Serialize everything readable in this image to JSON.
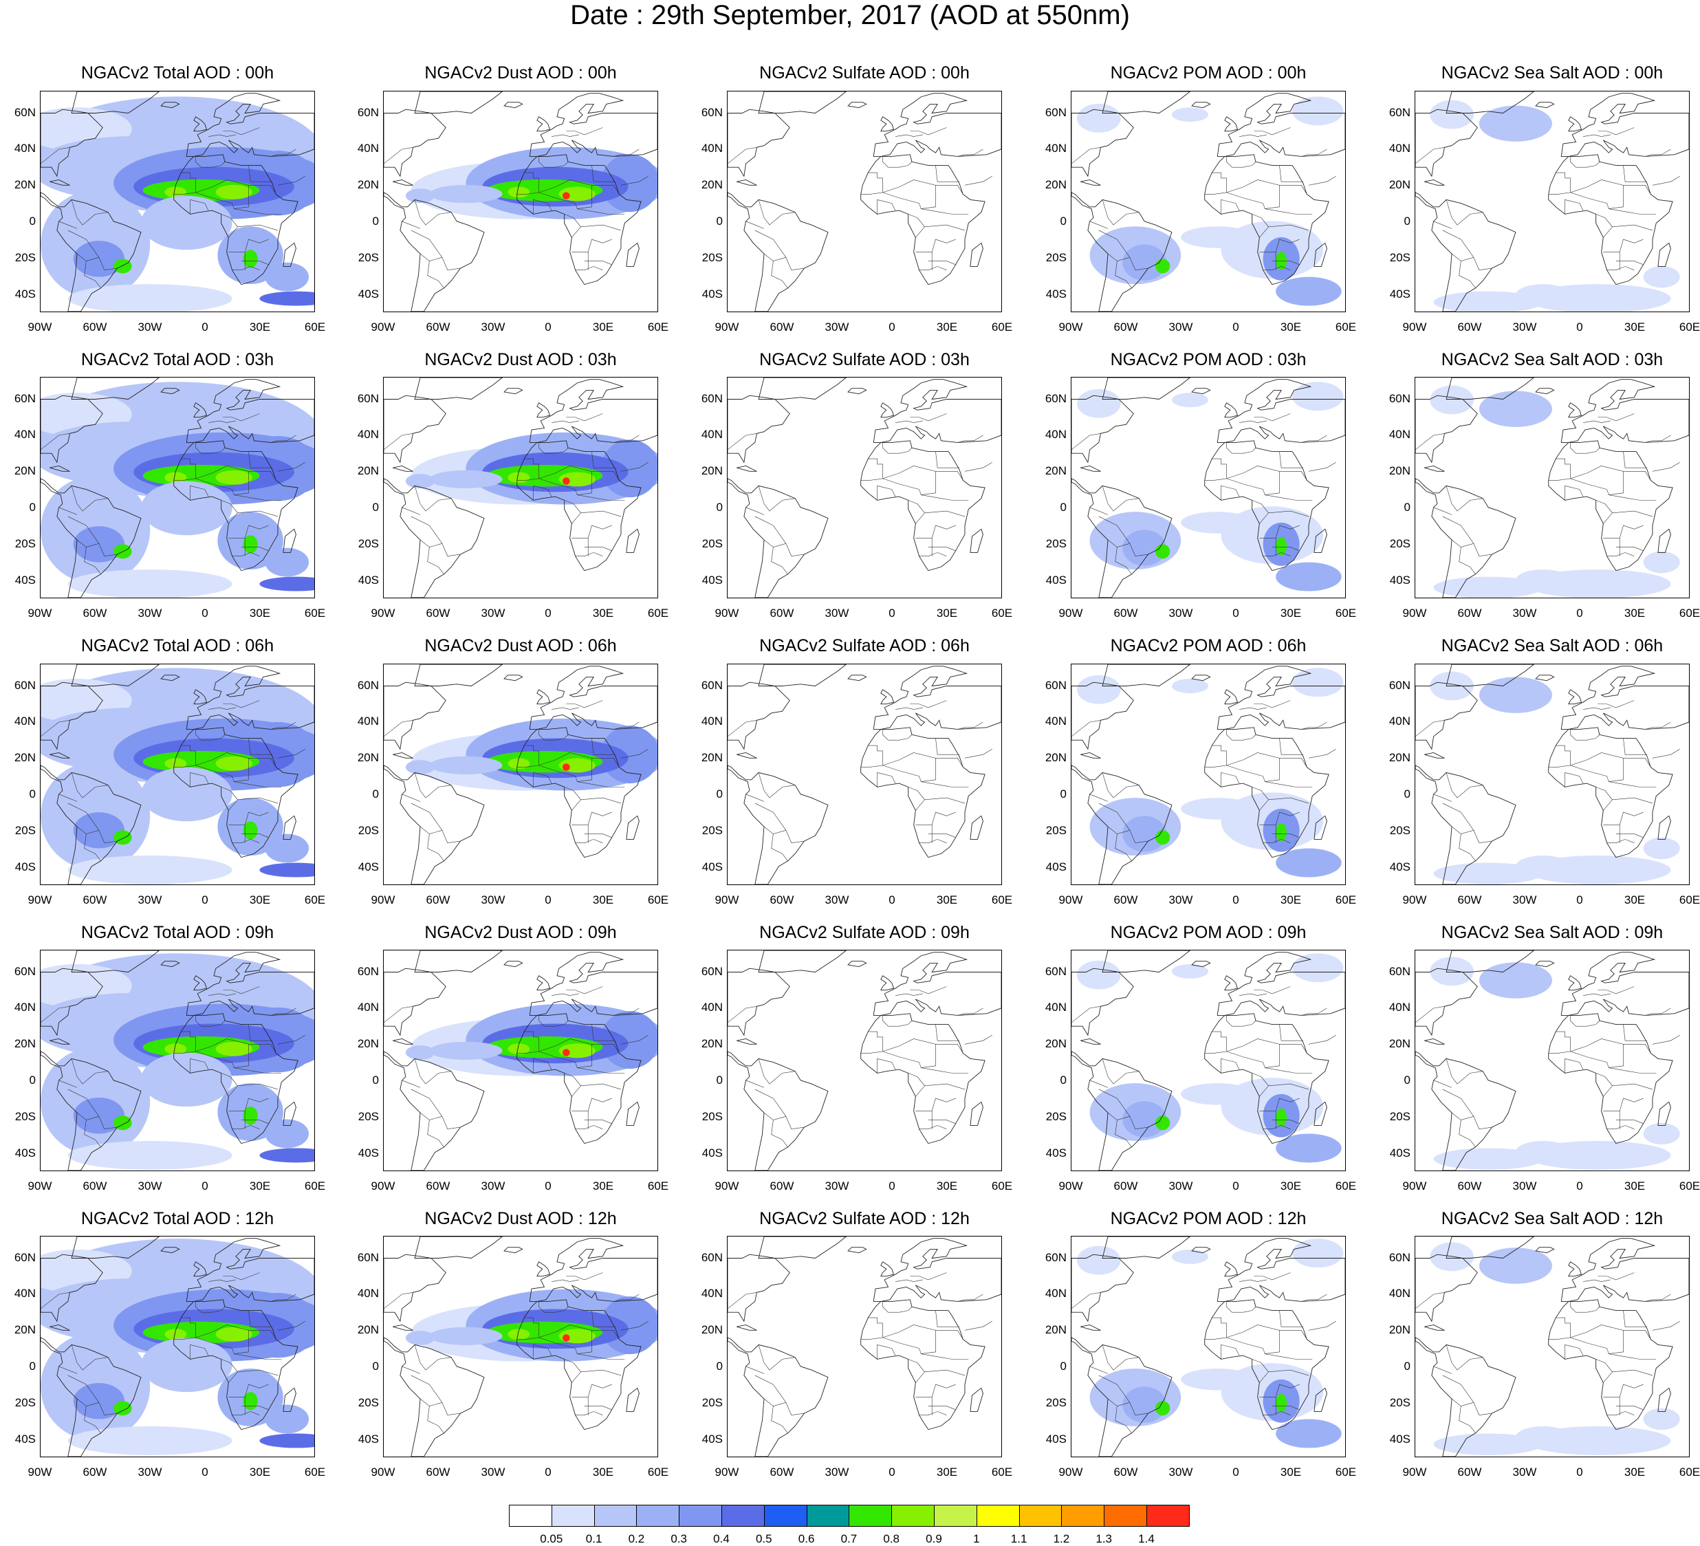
{
  "title": "Date : 29th September, 2017 (AOD at 550nm)",
  "panels": [
    [
      "NGACv2 Total AOD : 00h",
      "NGACv2 Dust AOD : 00h",
      "NGACv2 Sulfate AOD : 00h",
      "NGACv2 POM AOD : 00h",
      "NGACv2 Sea Salt AOD : 00h"
    ],
    [
      "NGACv2 Total AOD : 03h",
      "NGACv2 Dust AOD : 03h",
      "NGACv2 Sulfate AOD : 03h",
      "NGACv2 POM AOD : 03h",
      "NGACv2 Sea Salt AOD : 03h"
    ],
    [
      "NGACv2 Total AOD : 06h",
      "NGACv2 Dust AOD : 06h",
      "NGACv2 Sulfate AOD : 06h",
      "NGACv2 POM AOD : 06h",
      "NGACv2 Sea Salt AOD : 06h"
    ],
    [
      "NGACv2 Total AOD : 09h",
      "NGACv2 Dust AOD : 09h",
      "NGACv2 Sulfate AOD : 09h",
      "NGACv2 POM AOD : 09h",
      "NGACv2 Sea Salt  AOD : 09h"
    ],
    [
      "NGACv2 Total AOD  : 12h",
      "NGACv2 Dust AOD : 12h",
      "NGACv2 Sulfate AOD : 12h",
      "NGACv2 POM  AOD : 12h",
      "NGACv2 Sea Salt  AOD : 12h"
    ]
  ],
  "panel_types": [
    "total",
    "dust",
    "sulfate",
    "pom",
    "seasalt"
  ],
  "lat_labels": [
    "60N",
    "40N",
    "20N",
    "0",
    "20S",
    "40S"
  ],
  "lon_labels": [
    "90W",
    "60W",
    "30W",
    "0",
    "30E",
    "60E"
  ],
  "colorbar": {
    "colors": [
      "#ffffff",
      "#d9e2fc",
      "#b7c6f8",
      "#9cb1f5",
      "#7f97f0",
      "#5b6de6",
      "#1f5ef2",
      "#009a9a",
      "#33e600",
      "#86f000",
      "#c6f24a",
      "#ffff00",
      "#ffc200",
      "#ff9d00",
      "#ff6d00",
      "#ff2a1a"
    ],
    "labels": [
      "0.05",
      "0.1",
      "0.2",
      "0.3",
      "0.4",
      "0.5",
      "0.6",
      "0.7",
      "0.8",
      "0.9",
      "1",
      "1.1",
      "1.2",
      "1.3",
      "1.4"
    ]
  }
}
